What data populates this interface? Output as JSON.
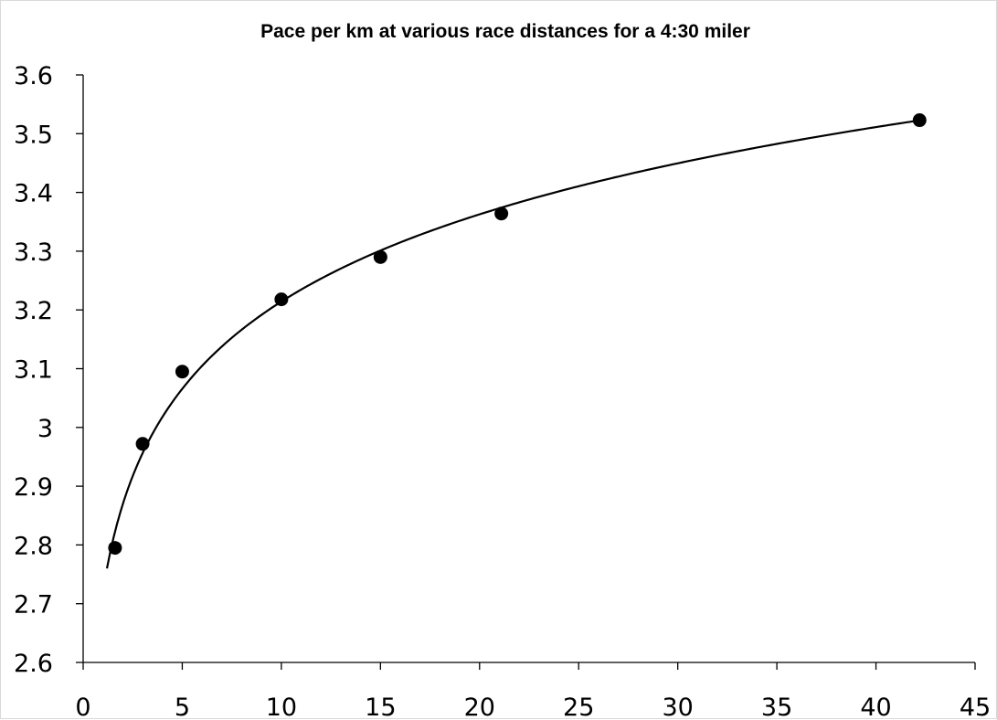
{
  "chart_data": {
    "type": "scatter",
    "title": "Pace per km at various race distances for a 4:30 miler",
    "xlabel": "",
    "ylabel": "",
    "xlim": [
      0,
      45
    ],
    "ylim": [
      2.6,
      3.6
    ],
    "x_ticks": [
      0,
      5,
      10,
      15,
      20,
      25,
      30,
      35,
      40,
      45
    ],
    "y_ticks": [
      2.6,
      2.7,
      2.8,
      2.9,
      3,
      3.1,
      3.2,
      3.3,
      3.4,
      3.5,
      3.6
    ],
    "x_tick_labels": [
      "0",
      "5",
      "10",
      "15",
      "20",
      "25",
      "30",
      "35",
      "40",
      "45"
    ],
    "y_tick_labels": [
      "2.6",
      "2.7",
      "2.8",
      "2.9",
      "3",
      "3.1",
      "3.2",
      "3.3",
      "3.4",
      "3.5",
      "3.6"
    ],
    "grid": false,
    "legend": "none",
    "series": [
      {
        "points": [
          {
            "x": 1.609,
            "y": 2.795
          },
          {
            "x": 3.0,
            "y": 2.972
          },
          {
            "x": 5.0,
            "y": 3.095
          },
          {
            "x": 10.0,
            "y": 3.218
          },
          {
            "x": 15.0,
            "y": 3.29
          },
          {
            "x": 21.1,
            "y": 3.364
          },
          {
            "x": 42.2,
            "y": 3.523
          }
        ],
        "marker": "circle",
        "color": "#000000"
      }
    ],
    "trendline": {
      "type": "logarithmic",
      "x_range": [
        1.2,
        42.2
      ],
      "color": "#000000"
    }
  }
}
